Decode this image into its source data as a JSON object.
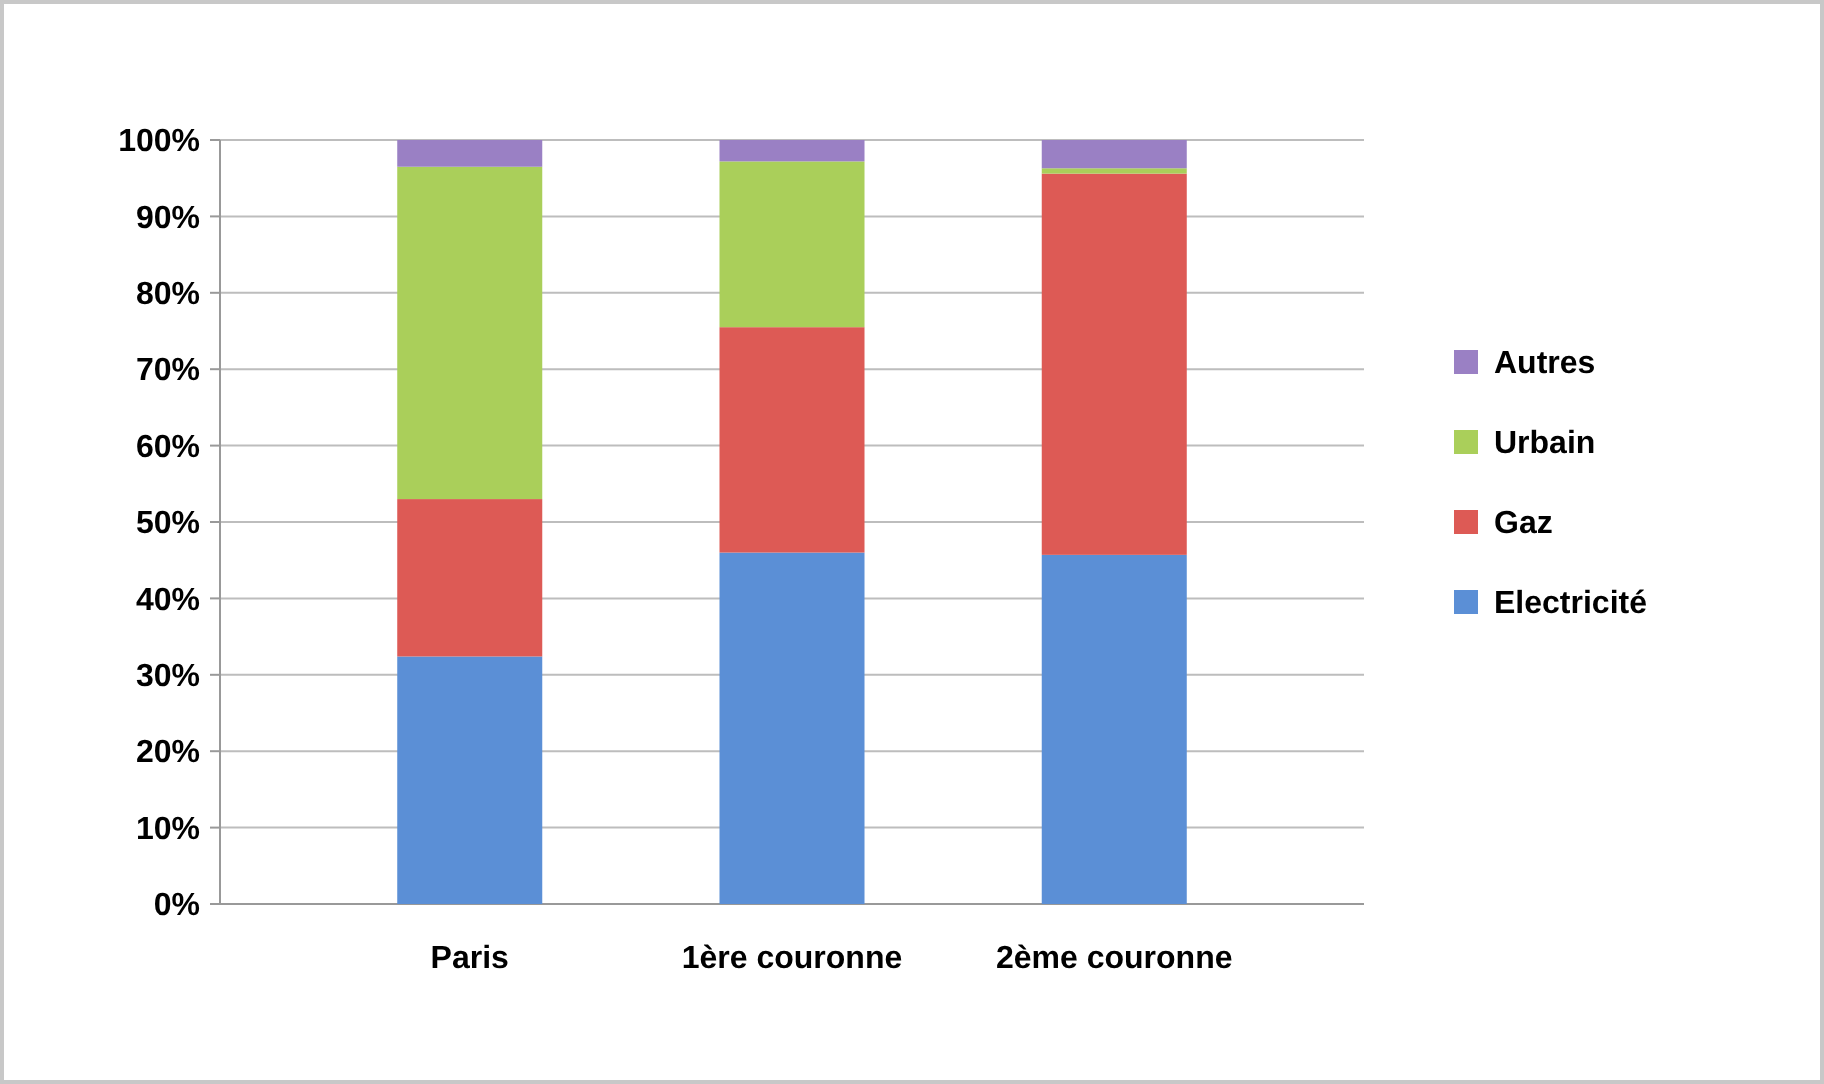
{
  "chart_data": {
    "type": "bar",
    "stacked": true,
    "categories": [
      "Paris",
      "1ère couronne",
      "2ème couronne"
    ],
    "series": [
      {
        "name": "Electricité",
        "color": "#5b8fd6",
        "values": [
          32.4,
          46,
          45.7
        ]
      },
      {
        "name": "Gaz",
        "color": "#dd5a55",
        "values": [
          20.6,
          29.5,
          49.9
        ]
      },
      {
        "name": "Urbain",
        "color": "#aacf5a",
        "values": [
          43.5,
          21.7,
          0.7
        ]
      },
      {
        "name": "Autres",
        "color": "#9a80c4",
        "values": [
          3.5,
          2.8,
          3.7
        ]
      }
    ],
    "ylim": [
      0,
      100
    ],
    "yticks": [
      {
        "value": 0,
        "label": "0%"
      },
      {
        "value": 10,
        "label": "10%"
      },
      {
        "value": 20,
        "label": "20%"
      },
      {
        "value": 30,
        "label": "30%"
      },
      {
        "value": 40,
        "label": "40%"
      },
      {
        "value": 50,
        "label": "50%"
      },
      {
        "value": 60,
        "label": "60%"
      },
      {
        "value": 70,
        "label": "70%"
      },
      {
        "value": 80,
        "label": "80%"
      },
      {
        "value": 90,
        "label": "90%"
      },
      {
        "value": 100,
        "label": "100%"
      }
    ],
    "grid": "y",
    "legend": "right"
  }
}
